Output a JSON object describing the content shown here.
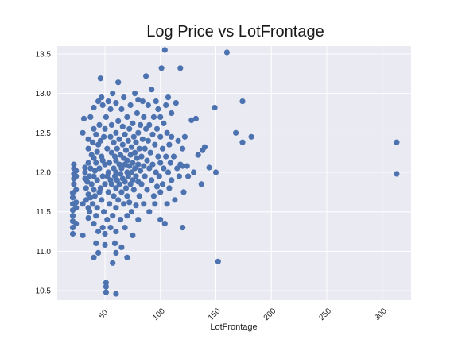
{
  "chart_data": {
    "type": "scatter",
    "title": "Log Price vs LotFrontage",
    "xlabel": "LotFrontage",
    "ylabel": "",
    "xlim": [
      7,
      326
    ],
    "ylim": [
      10.38,
      13.6
    ],
    "xticks": [
      50,
      100,
      150,
      200,
      250,
      300
    ],
    "xtick_labels": [
      "50",
      "100",
      "150",
      "200",
      "250",
      "300"
    ],
    "yticks": [
      10.5,
      11.0,
      11.5,
      12.0,
      12.5,
      13.0,
      13.5
    ],
    "ytick_labels": [
      "10.5",
      "11.0",
      "11.5",
      "12.0",
      "12.5",
      "13.0",
      "13.5"
    ],
    "grid": true,
    "legend": "none",
    "style": {
      "background": "#eaeaf2",
      "grid_color": "#ffffff",
      "marker_color": "#4c72b0"
    },
    "points": [
      [
        21,
        11.22
      ],
      [
        21,
        11.3
      ],
      [
        21,
        11.38
      ],
      [
        21,
        11.45
      ],
      [
        21,
        11.52
      ],
      [
        21,
        11.6
      ],
      [
        21,
        11.68
      ],
      [
        21,
        11.74
      ],
      [
        22,
        11.85
      ],
      [
        22,
        11.92
      ],
      [
        22,
        11.98
      ],
      [
        22,
        12.05
      ],
      [
        22,
        12.1
      ],
      [
        24,
        11.55
      ],
      [
        24,
        11.62
      ],
      [
        24,
        11.78
      ],
      [
        24,
        11.95
      ],
      [
        24,
        12.02
      ],
      [
        24,
        11.35
      ],
      [
        30,
        11.2
      ],
      [
        30,
        11.6
      ],
      [
        30,
        12.5
      ],
      [
        31,
        12.68
      ],
      [
        32,
        11.92
      ],
      [
        32,
        12.0
      ],
      [
        32,
        12.06
      ],
      [
        33,
        11.65
      ],
      [
        33,
        11.8
      ],
      [
        34,
        11.88
      ],
      [
        35,
        11.42
      ],
      [
        35,
        11.55
      ],
      [
        35,
        11.72
      ],
      [
        35,
        12.12
      ],
      [
        35,
        12.3
      ],
      [
        35,
        12.42
      ],
      [
        36,
        11.5
      ],
      [
        36,
        11.95
      ],
      [
        37,
        11.68
      ],
      [
        37,
        12.05
      ],
      [
        37,
        12.7
      ],
      [
        38,
        11.85
      ],
      [
        38,
        12.22
      ],
      [
        39,
        12.38
      ],
      [
        39,
        11.6
      ],
      [
        40,
        11.78
      ],
      [
        40,
        11.95
      ],
      [
        40,
        12.18
      ],
      [
        40,
        12.55
      ],
      [
        40,
        12.82
      ],
      [
        40,
        11.35
      ],
      [
        40,
        10.92
      ],
      [
        41,
        12.02
      ],
      [
        41,
        11.7
      ],
      [
        42,
        12.48
      ],
      [
        42,
        12.12
      ],
      [
        42,
        11.45
      ],
      [
        42,
        11.1
      ],
      [
        43,
        12.26
      ],
      [
        43,
        11.9
      ],
      [
        43,
        11.55
      ],
      [
        44,
        12.9
      ],
      [
        44,
        12.35
      ],
      [
        44,
        11.25
      ],
      [
        44,
        10.98
      ],
      [
        45,
        11.75
      ],
      [
        45,
        12.05
      ],
      [
        45,
        12.6
      ],
      [
        46,
        13.19
      ],
      [
        46,
        12.4
      ],
      [
        46,
        11.8
      ],
      [
        47,
        12.95
      ],
      [
        47,
        12.2
      ],
      [
        47,
        11.65
      ],
      [
        48,
        11.3
      ],
      [
        48,
        12.15
      ],
      [
        48,
        11.95
      ],
      [
        48,
        12.85
      ],
      [
        49,
        11.5
      ],
      [
        49,
        12.45
      ],
      [
        50,
        12.1
      ],
      [
        50,
        11.85
      ],
      [
        50,
        12.55
      ],
      [
        50,
        11.22
      ],
      [
        50,
        11.08
      ],
      [
        51,
        10.48
      ],
      [
        51,
        10.55
      ],
      [
        51,
        10.6
      ],
      [
        51,
        12.7
      ],
      [
        52,
        12.3
      ],
      [
        52,
        11.95
      ],
      [
        52,
        11.4
      ],
      [
        53,
        12.0
      ],
      [
        53,
        11.75
      ],
      [
        53,
        12.9
      ],
      [
        54,
        12.12
      ],
      [
        54,
        11.6
      ],
      [
        55,
        12.8
      ],
      [
        55,
        12.45
      ],
      [
        55,
        11.9
      ],
      [
        55,
        11.3
      ],
      [
        56,
        11.85
      ],
      [
        56,
        12.25
      ],
      [
        56,
        12.6
      ],
      [
        57,
        13.0
      ],
      [
        57,
        11.45
      ],
      [
        57,
        10.85
      ],
      [
        58,
        12.05
      ],
      [
        58,
        11.7
      ],
      [
        58,
        12.38
      ],
      [
        59,
        11.95
      ],
      [
        59,
        12.2
      ],
      [
        59,
        11.1
      ],
      [
        60,
        11.8
      ],
      [
        60,
        12.0
      ],
      [
        60,
        12.15
      ],
      [
        60,
        12.5
      ],
      [
        60,
        12.88
      ],
      [
        60,
        11.55
      ],
      [
        60,
        11.25
      ],
      [
        60,
        10.98
      ],
      [
        60,
        10.46
      ],
      [
        61,
        11.9
      ],
      [
        61,
        12.3
      ],
      [
        62,
        13.14
      ],
      [
        62,
        12.65
      ],
      [
        62,
        11.65
      ],
      [
        63,
        12.1
      ],
      [
        63,
        11.85
      ],
      [
        63,
        12.42
      ],
      [
        64,
        11.98
      ],
      [
        64,
        12.22
      ],
      [
        64,
        11.4
      ],
      [
        65,
        12.8
      ],
      [
        65,
        12.05
      ],
      [
        65,
        11.75
      ],
      [
        65,
        11.05
      ],
      [
        66,
        12.35
      ],
      [
        66,
        11.92
      ],
      [
        66,
        12.58
      ],
      [
        67,
        12.18
      ],
      [
        67,
        11.6
      ],
      [
        67,
        12.95
      ],
      [
        68,
        11.88
      ],
      [
        68,
        12.1
      ],
      [
        68,
        12.48
      ],
      [
        68,
        11.3
      ],
      [
        69,
        12.28
      ],
      [
        69,
        11.8
      ],
      [
        70,
        12.0
      ],
      [
        70,
        12.15
      ],
      [
        70,
        11.7
      ],
      [
        70,
        12.7
      ],
      [
        70,
        11.45
      ],
      [
        70,
        10.92
      ],
      [
        71,
        12.4
      ],
      [
        71,
        11.95
      ],
      [
        72,
        12.08
      ],
      [
        72,
        12.55
      ],
      [
        72,
        11.62
      ],
      [
        73,
        12.22
      ],
      [
        73,
        11.85
      ],
      [
        73,
        12.85
      ],
      [
        74,
        12.0
      ],
      [
        74,
        12.32
      ],
      [
        74,
        11.5
      ],
      [
        75,
        12.12
      ],
      [
        75,
        11.9
      ],
      [
        75,
        12.62
      ],
      [
        75,
        11.2
      ],
      [
        76,
        12.45
      ],
      [
        76,
        11.78
      ],
      [
        77,
        12.05
      ],
      [
        77,
        12.25
      ],
      [
        77,
        13.0
      ],
      [
        78,
        11.95
      ],
      [
        78,
        12.38
      ],
      [
        78,
        11.58
      ],
      [
        79,
        12.18
      ],
      [
        79,
        12.75
      ],
      [
        80,
        12.1
      ],
      [
        80,
        11.88
      ],
      [
        80,
        12.5
      ],
      [
        80,
        11.4
      ],
      [
        80,
        12.92
      ],
      [
        81,
        12.3
      ],
      [
        81,
        11.7
      ],
      [
        82,
        12.02
      ],
      [
        82,
        12.6
      ],
      [
        83,
        12.2
      ],
      [
        83,
        11.85
      ],
      [
        84,
        12.42
      ],
      [
        84,
        12.9
      ],
      [
        85,
        12.08
      ],
      [
        85,
        11.6
      ],
      [
        85,
        12.7
      ],
      [
        86,
        12.3
      ],
      [
        86,
        11.95
      ],
      [
        87,
        13.22
      ],
      [
        87,
        12.55
      ],
      [
        88,
        12.15
      ],
      [
        88,
        11.78
      ],
      [
        89,
        12.4
      ],
      [
        89,
        12.85
      ],
      [
        90,
        12.05
      ],
      [
        90,
        12.6
      ],
      [
        90,
        11.5
      ],
      [
        91,
        12.25
      ],
      [
        92,
        13.05
      ],
      [
        92,
        11.9
      ],
      [
        93,
        12.48
      ],
      [
        93,
        12.1
      ],
      [
        94,
        11.7
      ],
      [
        94,
        12.7
      ],
      [
        95,
        12.35
      ],
      [
        95,
        11.6
      ],
      [
        96,
        12.9
      ],
      [
        96,
        12.0
      ],
      [
        97,
        12.55
      ],
      [
        97,
        11.82
      ],
      [
        98,
        12.2
      ],
      [
        98,
        12.8
      ],
      [
        99,
        11.95
      ],
      [
        100,
        12.45
      ],
      [
        100,
        12.12
      ],
      [
        100,
        11.75
      ],
      [
        100,
        12.7
      ],
      [
        100,
        11.4
      ],
      [
        101,
        13.32
      ],
      [
        102,
        12.3
      ],
      [
        102,
        11.85
      ],
      [
        103,
        12.62
      ],
      [
        103,
        12.05
      ],
      [
        104,
        13.55
      ],
      [
        104,
        11.35
      ],
      [
        105,
        12.85
      ],
      [
        105,
        12.2
      ],
      [
        106,
        11.6
      ],
      [
        106,
        12.5
      ],
      [
        107,
        12.95
      ],
      [
        107,
        12.0
      ],
      [
        108,
        11.8
      ],
      [
        108,
        12.35
      ],
      [
        109,
        12.12
      ],
      [
        110,
        12.75
      ],
      [
        110,
        11.9
      ],
      [
        110,
        12.45
      ],
      [
        112,
        12.2
      ],
      [
        113,
        11.65
      ],
      [
        114,
        12.88
      ],
      [
        115,
        12.05
      ],
      [
        116,
        12.4
      ],
      [
        117,
        11.95
      ],
      [
        118,
        13.32
      ],
      [
        118,
        12.1
      ],
      [
        120,
        11.3
      ],
      [
        120,
        12.3
      ],
      [
        120,
        12.08
      ],
      [
        121,
        11.75
      ],
      [
        122,
        12.45
      ],
      [
        124,
        12.08
      ],
      [
        125,
        11.95
      ],
      [
        128,
        12.66
      ],
      [
        130,
        12.0
      ],
      [
        132,
        12.68
      ],
      [
        134,
        12.22
      ],
      [
        137,
        11.85
      ],
      [
        138,
        12.28
      ],
      [
        140,
        12.32
      ],
      [
        144,
        12.06
      ],
      [
        149,
        12.82
      ],
      [
        150,
        12.0
      ],
      [
        152,
        10.87
      ],
      [
        160,
        13.52
      ],
      [
        168,
        12.5
      ],
      [
        174,
        12.9
      ],
      [
        174,
        12.38
      ],
      [
        182,
        12.45
      ],
      [
        313,
        12.38
      ],
      [
        313,
        11.98
      ]
    ]
  }
}
